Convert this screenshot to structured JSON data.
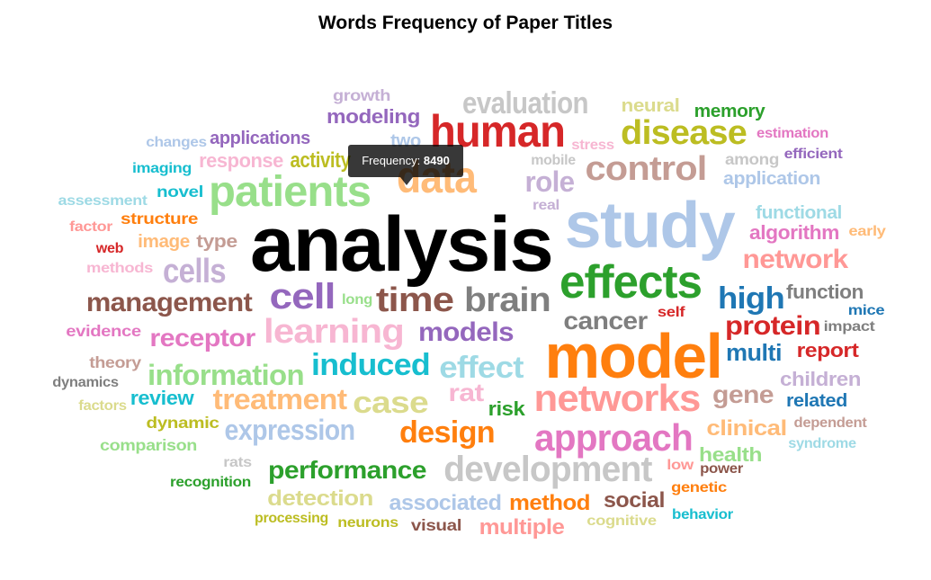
{
  "chart_data": {
    "type": "wordcloud",
    "title": "Words Frequency of Paper Titles",
    "tooltip": {
      "label": "Frequency:",
      "value": "8490"
    },
    "words": [
      {
        "text": "analysis",
        "color": "#000000"
      },
      {
        "text": "study",
        "color": "#aec7e8"
      },
      {
        "text": "model",
        "color": "#ff7f0e"
      },
      {
        "text": "human",
        "color": "#d62728"
      },
      {
        "text": "data",
        "color": "#ffbb78"
      },
      {
        "text": "effects",
        "color": "#2ca02c"
      },
      {
        "text": "patients",
        "color": "#98df8a"
      },
      {
        "text": "networks",
        "color": "#ff9896"
      },
      {
        "text": "approach",
        "color": "#e377c2"
      },
      {
        "text": "disease",
        "color": "#bcbd22"
      },
      {
        "text": "control",
        "color": "#c49c94"
      },
      {
        "text": "development",
        "color": "#c7c7c7"
      },
      {
        "text": "brain",
        "color": "#7f7f7f"
      },
      {
        "text": "time",
        "color": "#8c564b"
      },
      {
        "text": "cells",
        "color": "#c5b0d5"
      },
      {
        "text": "cell",
        "color": "#9467bd"
      },
      {
        "text": "learning",
        "color": "#f7b6d2"
      },
      {
        "text": "evaluation",
        "color": "#c7c7c7"
      },
      {
        "text": "high",
        "color": "#1f77b4"
      },
      {
        "text": "management",
        "color": "#8c564b"
      },
      {
        "text": "case",
        "color": "#dbdb8d"
      },
      {
        "text": "information",
        "color": "#98df8a"
      },
      {
        "text": "effect",
        "color": "#9edae5"
      },
      {
        "text": "induced",
        "color": "#17becf"
      },
      {
        "text": "expression",
        "color": "#aec7e8"
      },
      {
        "text": "treatment",
        "color": "#ffbb78"
      },
      {
        "text": "design",
        "color": "#ff7f0e"
      },
      {
        "text": "performance",
        "color": "#2ca02c"
      },
      {
        "text": "network",
        "color": "#ff9896"
      },
      {
        "text": "protein",
        "color": "#d62728"
      },
      {
        "text": "cancer",
        "color": "#7f7f7f"
      },
      {
        "text": "models",
        "color": "#9467bd"
      },
      {
        "text": "receptor",
        "color": "#e377c2"
      },
      {
        "text": "role",
        "color": "#c5b0d5"
      },
      {
        "text": "gene",
        "color": "#c49c94"
      },
      {
        "text": "multi",
        "color": "#1f77b4"
      },
      {
        "text": "clinical",
        "color": "#ffbb78"
      },
      {
        "text": "detection",
        "color": "#dbdb8d"
      },
      {
        "text": "associated",
        "color": "#aec7e8"
      },
      {
        "text": "method",
        "color": "#ff7f0e"
      },
      {
        "text": "multiple",
        "color": "#ff9896"
      },
      {
        "text": "social",
        "color": "#8c564b"
      },
      {
        "text": "memory",
        "color": "#2ca02c"
      },
      {
        "text": "neural",
        "color": "#dbdb8d"
      },
      {
        "text": "modeling",
        "color": "#9467bd"
      },
      {
        "text": "activity",
        "color": "#bcbd22"
      },
      {
        "text": "functional",
        "color": "#9edae5"
      },
      {
        "text": "algorithm",
        "color": "#e377c2"
      },
      {
        "text": "function",
        "color": "#7f7f7f"
      },
      {
        "text": "report",
        "color": "#d62728"
      },
      {
        "text": "children",
        "color": "#c5b0d5"
      },
      {
        "text": "related",
        "color": "#1f77b4"
      },
      {
        "text": "health",
        "color": "#98df8a"
      },
      {
        "text": "review",
        "color": "#17becf"
      },
      {
        "text": "rat",
        "color": "#f7b6d2"
      },
      {
        "text": "risk",
        "color": "#2ca02c"
      },
      {
        "text": "applications",
        "color": "#9467bd"
      },
      {
        "text": "response",
        "color": "#f7b6d2"
      },
      {
        "text": "application",
        "color": "#aec7e8"
      },
      {
        "text": "growth",
        "color": "#c5b0d5"
      },
      {
        "text": "two",
        "color": "#aec7e8"
      },
      {
        "text": "changes",
        "color": "#aec7e8"
      },
      {
        "text": "imaging",
        "color": "#17becf"
      },
      {
        "text": "novel",
        "color": "#17becf"
      },
      {
        "text": "assessment",
        "color": "#9edae5"
      },
      {
        "text": "structure",
        "color": "#ff7f0e"
      },
      {
        "text": "factor",
        "color": "#ff9896"
      },
      {
        "text": "web",
        "color": "#d62728"
      },
      {
        "text": "image",
        "color": "#ffbb78"
      },
      {
        "text": "type",
        "color": "#c49c94"
      },
      {
        "text": "methods",
        "color": "#f7b6d2"
      },
      {
        "text": "evidence",
        "color": "#e377c2"
      },
      {
        "text": "theory",
        "color": "#c49c94"
      },
      {
        "text": "dynamics",
        "color": "#7f7f7f"
      },
      {
        "text": "factors",
        "color": "#dbdb8d"
      },
      {
        "text": "dynamic",
        "color": "#bcbd22"
      },
      {
        "text": "comparison",
        "color": "#98df8a"
      },
      {
        "text": "rats",
        "color": "#c7c7c7"
      },
      {
        "text": "recognition",
        "color": "#2ca02c"
      },
      {
        "text": "processing",
        "color": "#bcbd22"
      },
      {
        "text": "neurons",
        "color": "#bcbd22"
      },
      {
        "text": "visual",
        "color": "#8c564b"
      },
      {
        "text": "cognitive",
        "color": "#dbdb8d"
      },
      {
        "text": "behavior",
        "color": "#17becf"
      },
      {
        "text": "genetic",
        "color": "#ff7f0e"
      },
      {
        "text": "low",
        "color": "#ff9896"
      },
      {
        "text": "power",
        "color": "#8c564b"
      },
      {
        "text": "syndrome",
        "color": "#9edae5"
      },
      {
        "text": "dependent",
        "color": "#c49c94"
      },
      {
        "text": "impact",
        "color": "#7f7f7f"
      },
      {
        "text": "mice",
        "color": "#1f77b4"
      },
      {
        "text": "self",
        "color": "#d62728"
      },
      {
        "text": "early",
        "color": "#ffbb78"
      },
      {
        "text": "efficient",
        "color": "#9467bd"
      },
      {
        "text": "estimation",
        "color": "#e377c2"
      },
      {
        "text": "among",
        "color": "#c7c7c7"
      },
      {
        "text": "stress",
        "color": "#f7b6d2"
      },
      {
        "text": "mobile",
        "color": "#c7c7c7"
      },
      {
        "text": "real",
        "color": "#c5b0d5"
      },
      {
        "text": "long",
        "color": "#98df8a"
      }
    ]
  }
}
